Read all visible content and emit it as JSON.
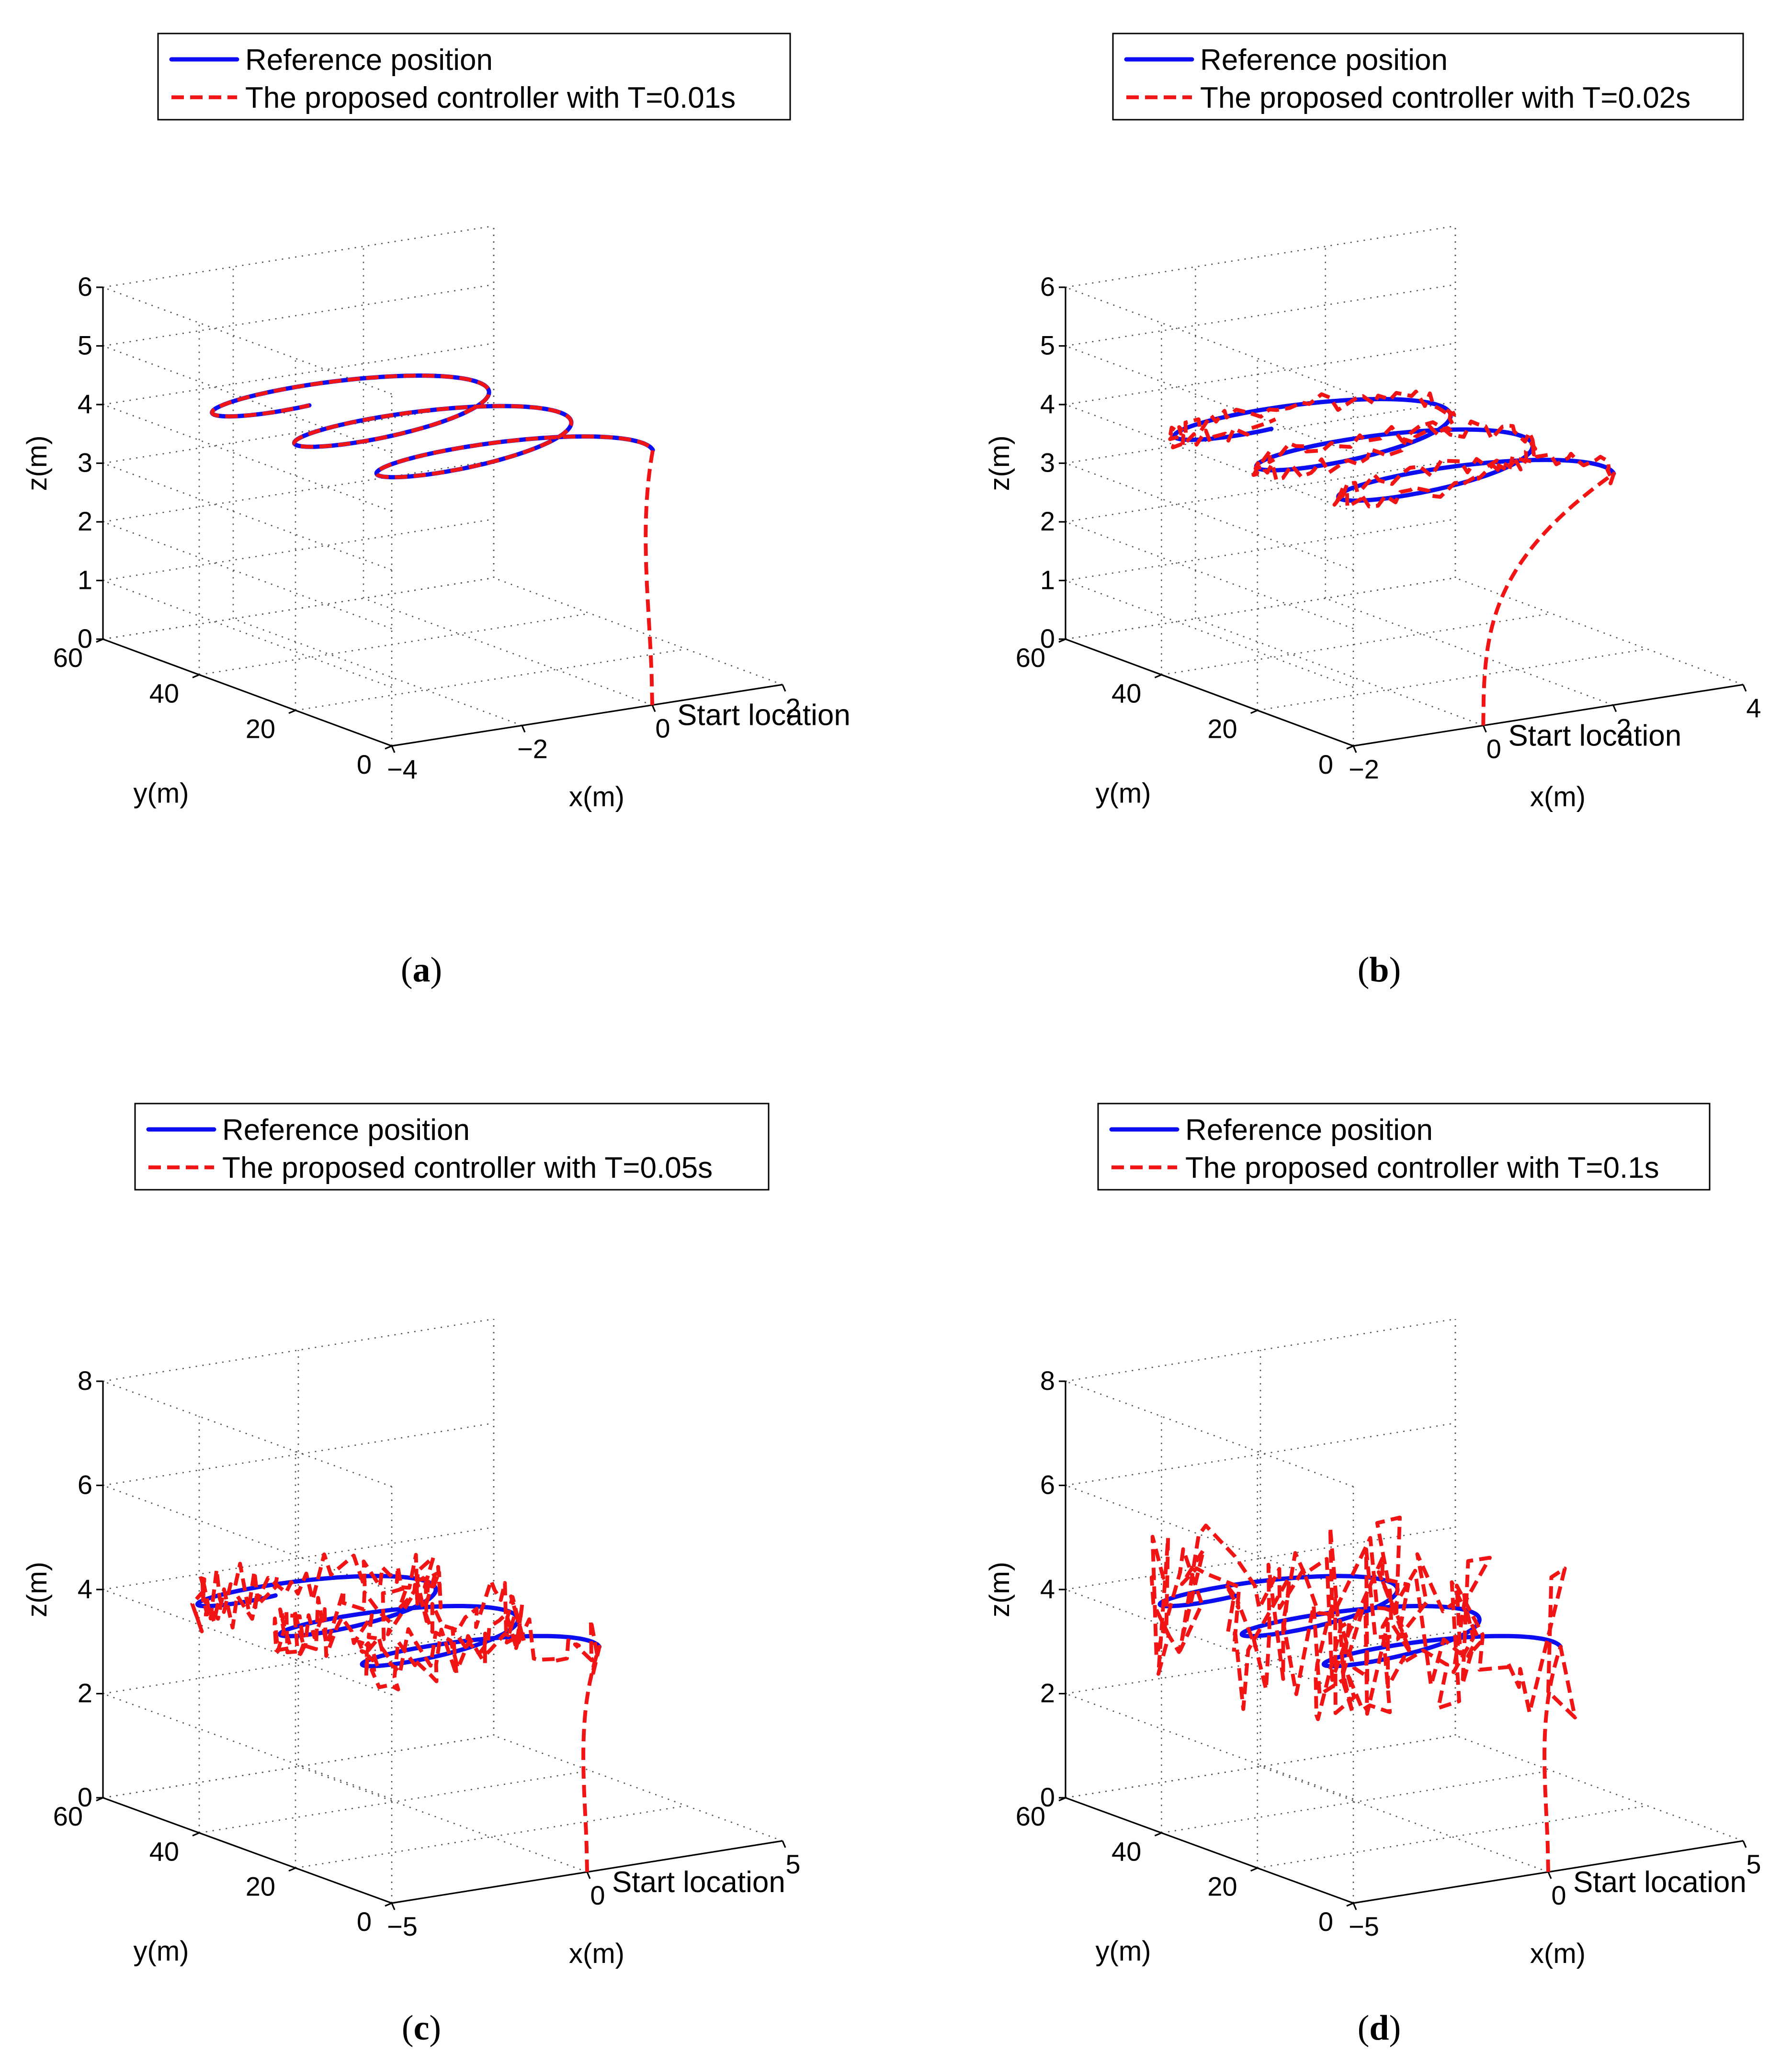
{
  "chart_data": [
    {
      "type": "line3d",
      "panel": "a",
      "caption_letter": "a",
      "legend": [
        "Reference position",
        "The proposed controller  with T=0.01s"
      ],
      "xlabel": "x(m)",
      "ylabel": "y(m)",
      "zlabel": "z(m)",
      "xlim": [
        -4,
        2
      ],
      "ylim": [
        0,
        60
      ],
      "zlim": [
        0,
        6
      ],
      "xticks": [
        "−4",
        "−2",
        "0",
        "2"
      ],
      "yticks": [
        "0",
        "20",
        "40",
        "60"
      ],
      "zticks": [
        "0",
        "1",
        "2",
        "3",
        "4",
        "5",
        "6"
      ],
      "xtick_values": [
        -4,
        -2,
        0,
        2
      ],
      "ytick_values": [
        0,
        20,
        40,
        60
      ],
      "ztick_values": [
        0,
        1,
        2,
        3,
        4,
        5,
        6
      ],
      "annotation": "Start location",
      "series": [
        {
          "name": "Reference position",
          "style": "solid-blue",
          "helix": {
            "x_center": -1.2,
            "x_amp": 1.8,
            "y_start": 8,
            "y_end": 55,
            "z_center": 4.0,
            "z_amp": 0.35,
            "turns": 2.75
          }
        },
        {
          "name": "The proposed controller  with T=0.01s",
          "style": "dashed-red",
          "start": [
            0,
            0,
            0
          ],
          "noise": 0.0
        }
      ]
    },
    {
      "type": "line3d",
      "panel": "b",
      "caption_letter": "b",
      "legend": [
        "Reference position",
        "The proposed controller  with T=0.02s"
      ],
      "xlabel": "x(m)",
      "ylabel": "y(m)",
      "zlabel": "z(m)",
      "xlim": [
        -2,
        4
      ],
      "ylim": [
        0,
        60
      ],
      "zlim": [
        0,
        6
      ],
      "xticks": [
        "−2",
        "0",
        "2",
        "4"
      ],
      "yticks": [
        "0",
        "20",
        "40",
        "60"
      ],
      "zticks": [
        "0",
        "1",
        "2",
        "3",
        "4",
        "5",
        "6"
      ],
      "xtick_values": [
        -2,
        0,
        2,
        4
      ],
      "ytick_values": [
        0,
        20,
        40,
        60
      ],
      "ztick_values": [
        0,
        1,
        2,
        3,
        4,
        5,
        6
      ],
      "annotation": "Start location",
      "series": [
        {
          "name": "Reference position",
          "style": "solid-blue",
          "helix": {
            "x_center": 0.8,
            "x_amp": 1.8,
            "y_start": 8,
            "y_end": 55,
            "z_center": 3.6,
            "z_amp": 0.35,
            "turns": 2.75
          }
        },
        {
          "name": "The proposed controller  with T=0.02s",
          "style": "dashed-red",
          "start": [
            0,
            0,
            0
          ],
          "noise": 0.12
        }
      ]
    },
    {
      "type": "line3d",
      "panel": "c",
      "caption_letter": "c",
      "legend": [
        "Reference position",
        "The proposed controller  with T=0.05s"
      ],
      "xlabel": "x(m)",
      "ylabel": "y(m)",
      "zlabel": "z(m)",
      "xlim": [
        -5,
        5
      ],
      "ylim": [
        0,
        60
      ],
      "zlim": [
        0,
        8
      ],
      "xticks": [
        "−5",
        "0",
        "5"
      ],
      "yticks": [
        "0",
        "20",
        "40",
        "60"
      ],
      "zticks": [
        "0",
        "2",
        "4",
        "6",
        "8"
      ],
      "xtick_values": [
        -5,
        0,
        5
      ],
      "ytick_values": [
        0,
        20,
        40,
        60
      ],
      "ztick_values": [
        0,
        2,
        4,
        6,
        8
      ],
      "annotation": "Start location",
      "series": [
        {
          "name": "Reference position",
          "style": "solid-blue",
          "helix": {
            "x_center": -1.2,
            "x_amp": 2.5,
            "y_start": 8,
            "y_end": 55,
            "z_center": 3.9,
            "z_amp": 0.3,
            "turns": 2.75
          }
        },
        {
          "name": "The proposed controller  with T=0.05s",
          "style": "dashed-red",
          "start": [
            0,
            0,
            0
          ],
          "noise": 0.3
        }
      ]
    },
    {
      "type": "line3d",
      "panel": "d",
      "caption_letter": "d",
      "legend": [
        "Reference position",
        "The proposed controller  with T=0.1s"
      ],
      "xlabel": "x(m)",
      "ylabel": "y(m)",
      "zlabel": "z(m)",
      "xlim": [
        -5,
        5
      ],
      "ylim": [
        0,
        60
      ],
      "zlim": [
        0,
        8
      ],
      "xticks": [
        "−5",
        "0",
        "5"
      ],
      "yticks": [
        "0",
        "20",
        "40",
        "60"
      ],
      "zticks": [
        "0",
        "2",
        "4",
        "6",
        "8"
      ],
      "xtick_values": [
        -5,
        0,
        5
      ],
      "ytick_values": [
        0,
        20,
        40,
        60
      ],
      "ztick_values": [
        0,
        2,
        4,
        6,
        8
      ],
      "annotation": "Start location",
      "series": [
        {
          "name": "Reference position",
          "style": "solid-blue",
          "helix": {
            "x_center": -1.2,
            "x_amp": 2.5,
            "y_start": 8,
            "y_end": 55,
            "z_center": 3.9,
            "z_amp": 0.3,
            "turns": 2.75
          }
        },
        {
          "name": "The proposed controller  with T=0.1s",
          "style": "dashed-red",
          "start": [
            0,
            0,
            0
          ],
          "noise": 0.8
        }
      ]
    }
  ],
  "colors": {
    "reference": "#0d0df2",
    "controller": "#f01414"
  }
}
